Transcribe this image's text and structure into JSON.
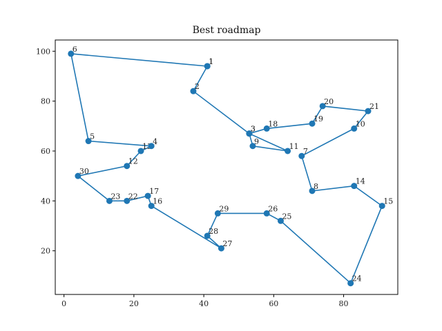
{
  "chart_data": {
    "type": "line",
    "title": "Best roadmap",
    "xlabel": "",
    "ylabel": "",
    "xlim": [
      -2.5,
      95.5
    ],
    "ylim": [
      2.5,
      104.5
    ],
    "xticks": [
      0,
      20,
      40,
      60,
      80
    ],
    "yticks": [
      20,
      40,
      60,
      80,
      100
    ],
    "grid": false,
    "color": "#1f77b4",
    "points": [
      {
        "label": "1",
        "x": 41,
        "y": 94
      },
      {
        "label": "2",
        "x": 37,
        "y": 84
      },
      {
        "label": "3",
        "x": 53,
        "y": 67
      },
      {
        "label": "9",
        "x": 54,
        "y": 62
      },
      {
        "label": "11",
        "x": 64,
        "y": 60
      },
      {
        "label": "3",
        "x": 53,
        "y": 67
      },
      {
        "label": "18",
        "x": 58,
        "y": 69
      },
      {
        "label": "19",
        "x": 71,
        "y": 71
      },
      {
        "label": "20",
        "x": 74,
        "y": 78
      },
      {
        "label": "21",
        "x": 87,
        "y": 76
      },
      {
        "label": "10",
        "x": 83,
        "y": 69
      },
      {
        "label": "7",
        "x": 68,
        "y": 58
      },
      {
        "label": "8",
        "x": 71,
        "y": 44
      },
      {
        "label": "14",
        "x": 83,
        "y": 46
      },
      {
        "label": "15",
        "x": 91,
        "y": 38
      },
      {
        "label": "24",
        "x": 82,
        "y": 7
      },
      {
        "label": "25",
        "x": 62,
        "y": 32
      },
      {
        "label": "26",
        "x": 58,
        "y": 35
      },
      {
        "label": "29",
        "x": 44,
        "y": 35
      },
      {
        "label": "28",
        "x": 41,
        "y": 26
      },
      {
        "label": "27",
        "x": 45,
        "y": 21
      },
      {
        "label": "16",
        "x": 25,
        "y": 38
      },
      {
        "label": "17",
        "x": 24,
        "y": 42
      },
      {
        "label": "22",
        "x": 18,
        "y": 40
      },
      {
        "label": "23",
        "x": 13,
        "y": 40
      },
      {
        "label": "30",
        "x": 4,
        "y": 50
      },
      {
        "label": "12",
        "x": 18,
        "y": 54
      },
      {
        "label": "13",
        "x": 22,
        "y": 60
      },
      {
        "label": "4",
        "x": 25,
        "y": 62
      },
      {
        "label": "5",
        "x": 7,
        "y": 64
      },
      {
        "label": "6",
        "x": 2,
        "y": 99
      },
      {
        "label": "1",
        "x": 41,
        "y": 94
      }
    ]
  }
}
